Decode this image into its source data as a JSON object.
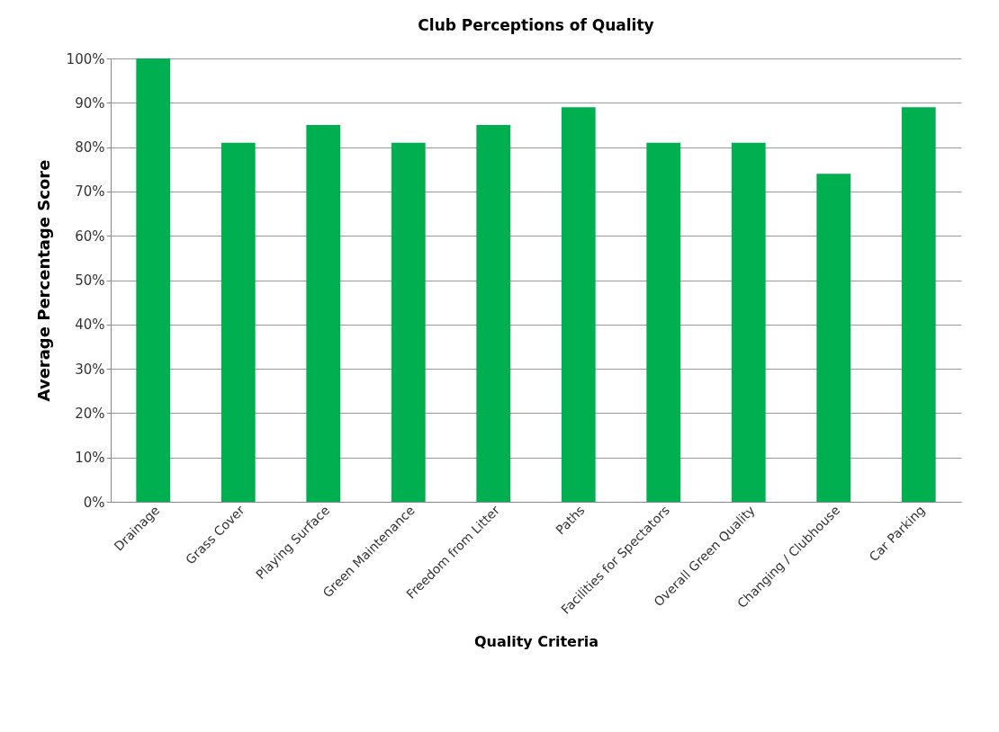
{
  "chart_data": {
    "type": "bar",
    "title": "Club Perceptions of Quality",
    "xlabel": "Quality Criteria",
    "ylabel": "Average Percentage Score",
    "categories": [
      "Drainage",
      "Grass Cover",
      "Playing Surface",
      "Green Maintenance",
      "Freedom from Litter",
      "Paths",
      "Facilities for Spectators",
      "Overall Green Quality",
      "Changing / Clubhouse",
      "Car Parking"
    ],
    "values": [
      100,
      81,
      85,
      81,
      85,
      89,
      81,
      81,
      74,
      89
    ],
    "color": "#00b050",
    "ylim": [
      0,
      100
    ],
    "yticks": [
      {
        "value": 0,
        "label": "0%"
      },
      {
        "value": 10,
        "label": "10%"
      },
      {
        "value": 20,
        "label": "20%"
      },
      {
        "value": 30,
        "label": "30%"
      },
      {
        "value": 40,
        "label": "40%"
      },
      {
        "value": 50,
        "label": "50%"
      },
      {
        "value": 60,
        "label": "60%"
      },
      {
        "value": 70,
        "label": "70%"
      },
      {
        "value": 80,
        "label": "80%"
      },
      {
        "value": 90,
        "label": "90%"
      },
      {
        "value": 100,
        "label": "100%"
      }
    ],
    "grid": "y"
  }
}
